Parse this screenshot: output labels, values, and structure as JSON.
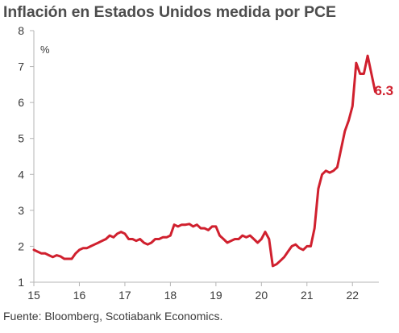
{
  "chart_data": {
    "type": "line",
    "title": "Inflación en Estados Unidos medida por PCE",
    "ylabel": "%",
    "xlabel": "",
    "source": "Fuente: Bloomberg, Scotiabank Economics.",
    "ylim": [
      1,
      8
    ],
    "xlim": [
      15,
      22.58
    ],
    "yticks": [
      1,
      2,
      3,
      4,
      5,
      6,
      7,
      8
    ],
    "xticks": [
      15,
      16,
      17,
      18,
      19,
      20,
      21,
      22
    ],
    "xtick_labels": [
      "15",
      "16",
      "17",
      "18",
      "19",
      "20",
      "21",
      "22"
    ],
    "grid": false,
    "legend": "none",
    "line_color": "#d0202e",
    "annotation": {
      "text": "6.3",
      "x": 22.5,
      "y": 6.3,
      "color": "#d0202e"
    },
    "series": [
      {
        "x": [
          15.0,
          15.083,
          15.167,
          15.25,
          15.333,
          15.417,
          15.5,
          15.583,
          15.667,
          15.75,
          15.833,
          15.917,
          16.0,
          16.083,
          16.167,
          16.25,
          16.333,
          16.417,
          16.5,
          16.583,
          16.667,
          16.75,
          16.833,
          16.917,
          17.0,
          17.083,
          17.167,
          17.25,
          17.333,
          17.417,
          17.5,
          17.583,
          17.667,
          17.75,
          17.833,
          17.917,
          18.0,
          18.083,
          18.167,
          18.25,
          18.333,
          18.417,
          18.5,
          18.583,
          18.667,
          18.75,
          18.833,
          18.917,
          19.0,
          19.083,
          19.167,
          19.25,
          19.333,
          19.417,
          19.5,
          19.583,
          19.667,
          19.75,
          19.833,
          19.917,
          20.0,
          20.083,
          20.167,
          20.25,
          20.333,
          20.417,
          20.5,
          20.583,
          20.667,
          20.75,
          20.833,
          20.917,
          21.0,
          21.083,
          21.167,
          21.25,
          21.333,
          21.417,
          21.5,
          21.583,
          21.667,
          21.75,
          21.833,
          21.917,
          22.0,
          22.083,
          22.167,
          22.25,
          22.333,
          22.417,
          22.5
        ],
        "values": [
          1.9,
          1.85,
          1.8,
          1.8,
          1.75,
          1.7,
          1.75,
          1.72,
          1.65,
          1.65,
          1.65,
          1.8,
          1.9,
          1.95,
          1.95,
          2.0,
          2.05,
          2.1,
          2.15,
          2.2,
          2.3,
          2.25,
          2.35,
          2.4,
          2.35,
          2.2,
          2.2,
          2.15,
          2.2,
          2.1,
          2.05,
          2.1,
          2.2,
          2.2,
          2.25,
          2.25,
          2.3,
          2.6,
          2.55,
          2.6,
          2.6,
          2.62,
          2.55,
          2.6,
          2.5,
          2.5,
          2.45,
          2.55,
          2.55,
          2.3,
          2.2,
          2.1,
          2.15,
          2.2,
          2.2,
          2.3,
          2.25,
          2.3,
          2.2,
          2.1,
          2.2,
          2.4,
          2.2,
          1.45,
          1.5,
          1.6,
          1.7,
          1.85,
          2.0,
          2.05,
          1.95,
          1.9,
          2.0,
          2.0,
          2.5,
          3.6,
          4.0,
          4.1,
          4.05,
          4.1,
          4.2,
          4.7,
          5.2,
          5.5,
          5.9,
          7.1,
          6.8,
          6.8,
          7.3,
          6.8,
          6.3
        ]
      }
    ]
  }
}
